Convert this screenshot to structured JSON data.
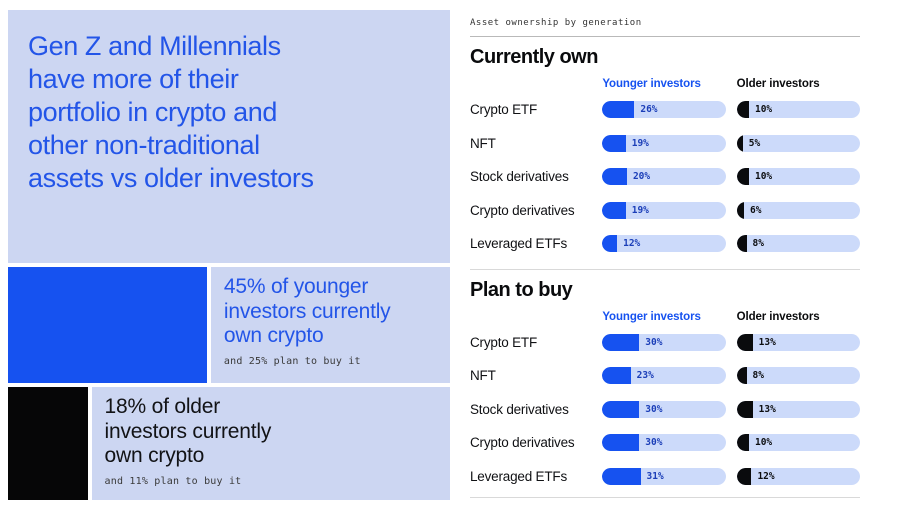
{
  "colors": {
    "brand_blue": "#1652f0",
    "headline_blue": "#2355e8",
    "panel_lavender": "#ccd6f2",
    "track_lavender": "#ccdafa",
    "ink_black": "#0a0b0d",
    "younger_pct_label": "#1b3eb8"
  },
  "left_panel": {
    "headline_lines": [
      "Gen Z and Millennials",
      "have more of their",
      "portfolio in crypto and",
      "other non-traditional",
      "assets vs older investors"
    ],
    "callouts": [
      {
        "value": 45,
        "title_lines": [
          "45% of younger",
          "investors currently",
          "own crypto"
        ],
        "caption": "and 25% plan to buy it"
      },
      {
        "value": 18,
        "title_lines": [
          "18% of older",
          "investors currently",
          "own crypto"
        ],
        "caption": "and 11% plan to buy it"
      }
    ]
  },
  "right_panel": {
    "caption": "Asset ownership by generation",
    "col_headers": {
      "younger": "Younger investors",
      "older": "Older investors"
    },
    "sections": [
      {
        "title": "Currently own",
        "rows": [
          {
            "label": "Crypto ETF",
            "younger": 26,
            "younger_pct": "26%",
            "older": 10,
            "older_pct": "10%"
          },
          {
            "label": "NFT",
            "younger": 19,
            "younger_pct": "19%",
            "older": 5,
            "older_pct": "5%"
          },
          {
            "label": "Stock derivatives",
            "younger": 20,
            "younger_pct": "20%",
            "older": 10,
            "older_pct": "10%"
          },
          {
            "label": "Crypto derivatives",
            "younger": 19,
            "younger_pct": "19%",
            "older": 6,
            "older_pct": "6%"
          },
          {
            "label": "Leveraged ETFs",
            "younger": 12,
            "younger_pct": "12%",
            "older": 8,
            "older_pct": "8%"
          }
        ]
      },
      {
        "title": "Plan to buy",
        "rows": [
          {
            "label": "Crypto ETF",
            "younger": 30,
            "younger_pct": "30%",
            "older": 13,
            "older_pct": "13%"
          },
          {
            "label": "NFT",
            "younger": 23,
            "younger_pct": "23%",
            "older": 8,
            "older_pct": "8%"
          },
          {
            "label": "Stock derivatives",
            "younger": 30,
            "younger_pct": "30%",
            "older": 13,
            "older_pct": "13%"
          },
          {
            "label": "Crypto derivatives",
            "younger": 30,
            "younger_pct": "30%",
            "older": 10,
            "older_pct": "10%"
          },
          {
            "label": "Leveraged ETFs",
            "younger": 31,
            "younger_pct": "31%",
            "older": 12,
            "older_pct": "12%"
          }
        ]
      }
    ]
  },
  "chart_data": [
    {
      "type": "bar",
      "title": "Currently own",
      "categories": [
        "Crypto ETF",
        "NFT",
        "Stock derivatives",
        "Crypto derivatives",
        "Leveraged ETFs"
      ],
      "series": [
        {
          "name": "Younger investors",
          "values": [
            26,
            19,
            20,
            19,
            12
          ],
          "color": "#1652f0"
        },
        {
          "name": "Older investors",
          "values": [
            10,
            5,
            10,
            6,
            8
          ],
          "color": "#0a0b0d"
        }
      ],
      "unit": "%",
      "xlim": [
        0,
        100
      ],
      "orientation": "horizontal",
      "legend_position": "top",
      "grid": false
    },
    {
      "type": "bar",
      "title": "Plan to buy",
      "categories": [
        "Crypto ETF",
        "NFT",
        "Stock derivatives",
        "Crypto derivatives",
        "Leveraged ETFs"
      ],
      "series": [
        {
          "name": "Younger investors",
          "values": [
            30,
            23,
            30,
            30,
            31
          ],
          "color": "#1652f0"
        },
        {
          "name": "Older investors",
          "values": [
            13,
            8,
            13,
            10,
            12
          ],
          "color": "#0a0b0d"
        }
      ],
      "unit": "%",
      "xlim": [
        0,
        100
      ],
      "orientation": "horizontal",
      "legend_position": "top",
      "grid": false
    },
    {
      "type": "bar",
      "title": "Crypto ownership callouts",
      "categories": [
        "Younger investors currently own crypto",
        "Older investors currently own crypto"
      ],
      "values": [
        45,
        18
      ],
      "annotations": [
        "and 25% plan to buy it",
        "and 11% plan to buy it"
      ],
      "unit": "%",
      "xlim": [
        0,
        100
      ],
      "orientation": "horizontal"
    }
  ]
}
